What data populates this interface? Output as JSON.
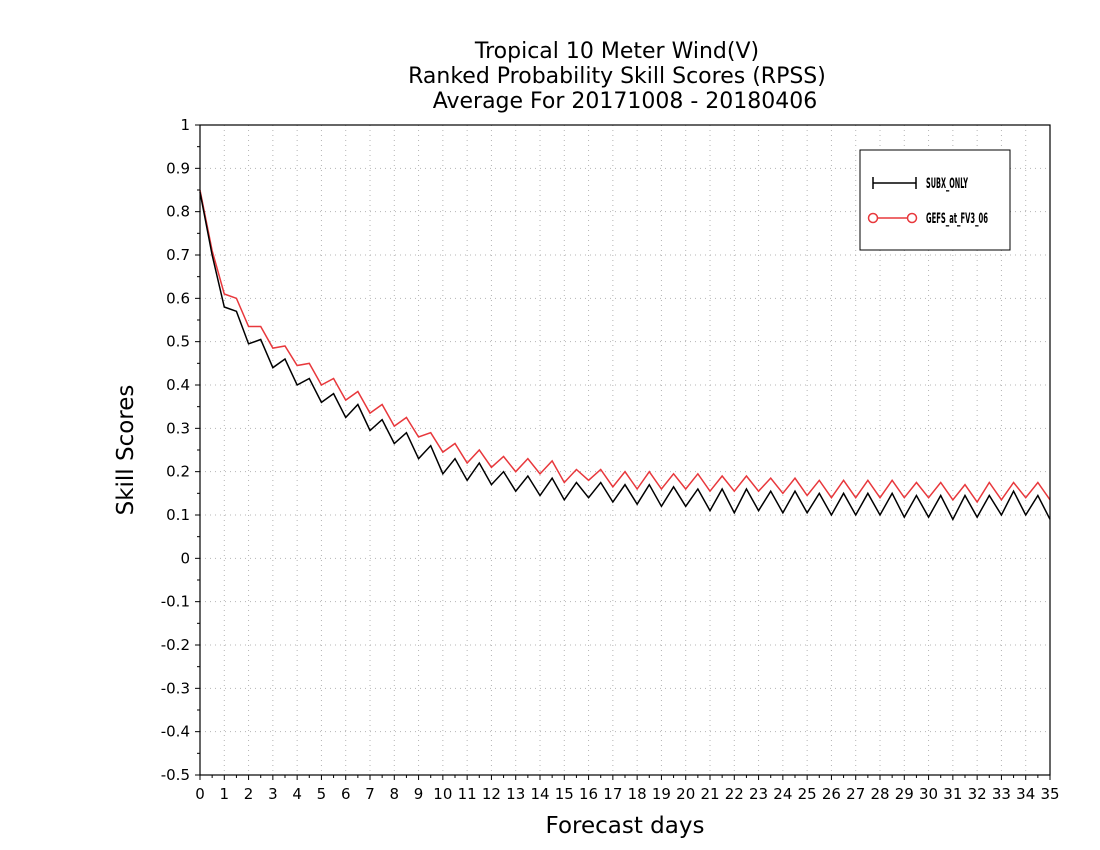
{
  "chart_data": {
    "type": "line",
    "title_lines": [
      "Tropical 10 Meter Wind(V)",
      "Ranked Probability Skill Scores (RPSS)",
      "Average For 20171008 - 20180406"
    ],
    "xlabel": "Forecast days",
    "ylabel": "Skill Scores",
    "xlim": [
      0,
      35
    ],
    "ylim": [
      -0.5,
      1
    ],
    "x_ticks": [
      "0",
      "1",
      "2",
      "3",
      "4",
      "5",
      "6",
      "7",
      "8",
      "9",
      "10",
      "11",
      "12",
      "13",
      "14",
      "15",
      "16",
      "17",
      "18",
      "19",
      "20",
      "21",
      "22",
      "23",
      "24",
      "25",
      "26",
      "27",
      "28",
      "29",
      "30",
      "31",
      "32",
      "33",
      "34",
      "35"
    ],
    "y_ticks": [
      "1",
      "0.9",
      "0.8",
      "0.7",
      "0.6",
      "0.5",
      "0.4",
      "0.3",
      "0.2",
      "0.1",
      "0",
      "-0.1",
      "-0.2",
      "-0.3",
      "-0.4",
      "-0.5"
    ],
    "grid": true,
    "legend_position": "top-right",
    "series": [
      {
        "name": "SUBX_ONLY",
        "color": "#000000",
        "marker": "cross",
        "x": [
          0,
          0.5,
          1,
          1.5,
          2,
          2.5,
          3,
          3.5,
          4,
          4.5,
          5,
          5.5,
          6,
          6.5,
          7,
          7.5,
          8,
          8.5,
          9,
          9.5,
          10,
          10.5,
          11,
          11.5,
          12,
          12.5,
          13,
          13.5,
          14,
          14.5,
          15,
          15.5,
          16,
          16.5,
          17,
          17.5,
          18,
          18.5,
          19,
          19.5,
          20,
          20.5,
          21,
          21.5,
          22,
          22.5,
          23,
          23.5,
          24,
          24.5,
          25,
          25.5,
          26,
          26.5,
          27,
          27.5,
          28,
          28.5,
          29,
          29.5,
          30,
          30.5,
          31,
          31.5,
          32,
          32.5,
          33,
          33.5,
          34,
          34.5,
          35
        ],
        "values": [
          0.845,
          0.7,
          0.58,
          0.57,
          0.495,
          0.505,
          0.44,
          0.46,
          0.4,
          0.415,
          0.36,
          0.38,
          0.325,
          0.355,
          0.295,
          0.32,
          0.265,
          0.29,
          0.23,
          0.26,
          0.195,
          0.23,
          0.18,
          0.22,
          0.17,
          0.2,
          0.155,
          0.19,
          0.145,
          0.185,
          0.135,
          0.175,
          0.14,
          0.175,
          0.13,
          0.17,
          0.125,
          0.17,
          0.12,
          0.165,
          0.12,
          0.16,
          0.11,
          0.16,
          0.105,
          0.16,
          0.11,
          0.155,
          0.105,
          0.155,
          0.105,
          0.15,
          0.1,
          0.15,
          0.1,
          0.15,
          0.1,
          0.15,
          0.095,
          0.145,
          0.095,
          0.145,
          0.09,
          0.145,
          0.095,
          0.145,
          0.1,
          0.155,
          0.1,
          0.145,
          0.09
        ]
      },
      {
        "name": "GEFS_at_FV3_06",
        "color": "#e8383c",
        "marker": "circle",
        "x": [
          0,
          0.5,
          1,
          1.5,
          2,
          2.5,
          3,
          3.5,
          4,
          4.5,
          5,
          5.5,
          6,
          6.5,
          7,
          7.5,
          8,
          8.5,
          9,
          9.5,
          10,
          10.5,
          11,
          11.5,
          12,
          12.5,
          13,
          13.5,
          14,
          14.5,
          15,
          15.5,
          16,
          16.5,
          17,
          17.5,
          18,
          18.5,
          19,
          19.5,
          20,
          20.5,
          21,
          21.5,
          22,
          22.5,
          23,
          23.5,
          24,
          24.5,
          25,
          25.5,
          26,
          26.5,
          27,
          27.5,
          28,
          28.5,
          29,
          29.5,
          30,
          30.5,
          31,
          31.5,
          32,
          32.5,
          33,
          33.5,
          34,
          34.5,
          35
        ],
        "values": [
          0.85,
          0.71,
          0.61,
          0.6,
          0.535,
          0.535,
          0.485,
          0.49,
          0.445,
          0.45,
          0.4,
          0.415,
          0.365,
          0.385,
          0.335,
          0.355,
          0.305,
          0.325,
          0.28,
          0.29,
          0.245,
          0.265,
          0.22,
          0.25,
          0.21,
          0.235,
          0.2,
          0.23,
          0.195,
          0.225,
          0.175,
          0.205,
          0.18,
          0.205,
          0.165,
          0.2,
          0.16,
          0.2,
          0.16,
          0.195,
          0.16,
          0.195,
          0.155,
          0.19,
          0.155,
          0.19,
          0.155,
          0.185,
          0.15,
          0.185,
          0.145,
          0.18,
          0.14,
          0.18,
          0.14,
          0.18,
          0.14,
          0.18,
          0.14,
          0.175,
          0.14,
          0.175,
          0.135,
          0.17,
          0.13,
          0.175,
          0.135,
          0.175,
          0.14,
          0.175,
          0.135
        ]
      }
    ]
  }
}
